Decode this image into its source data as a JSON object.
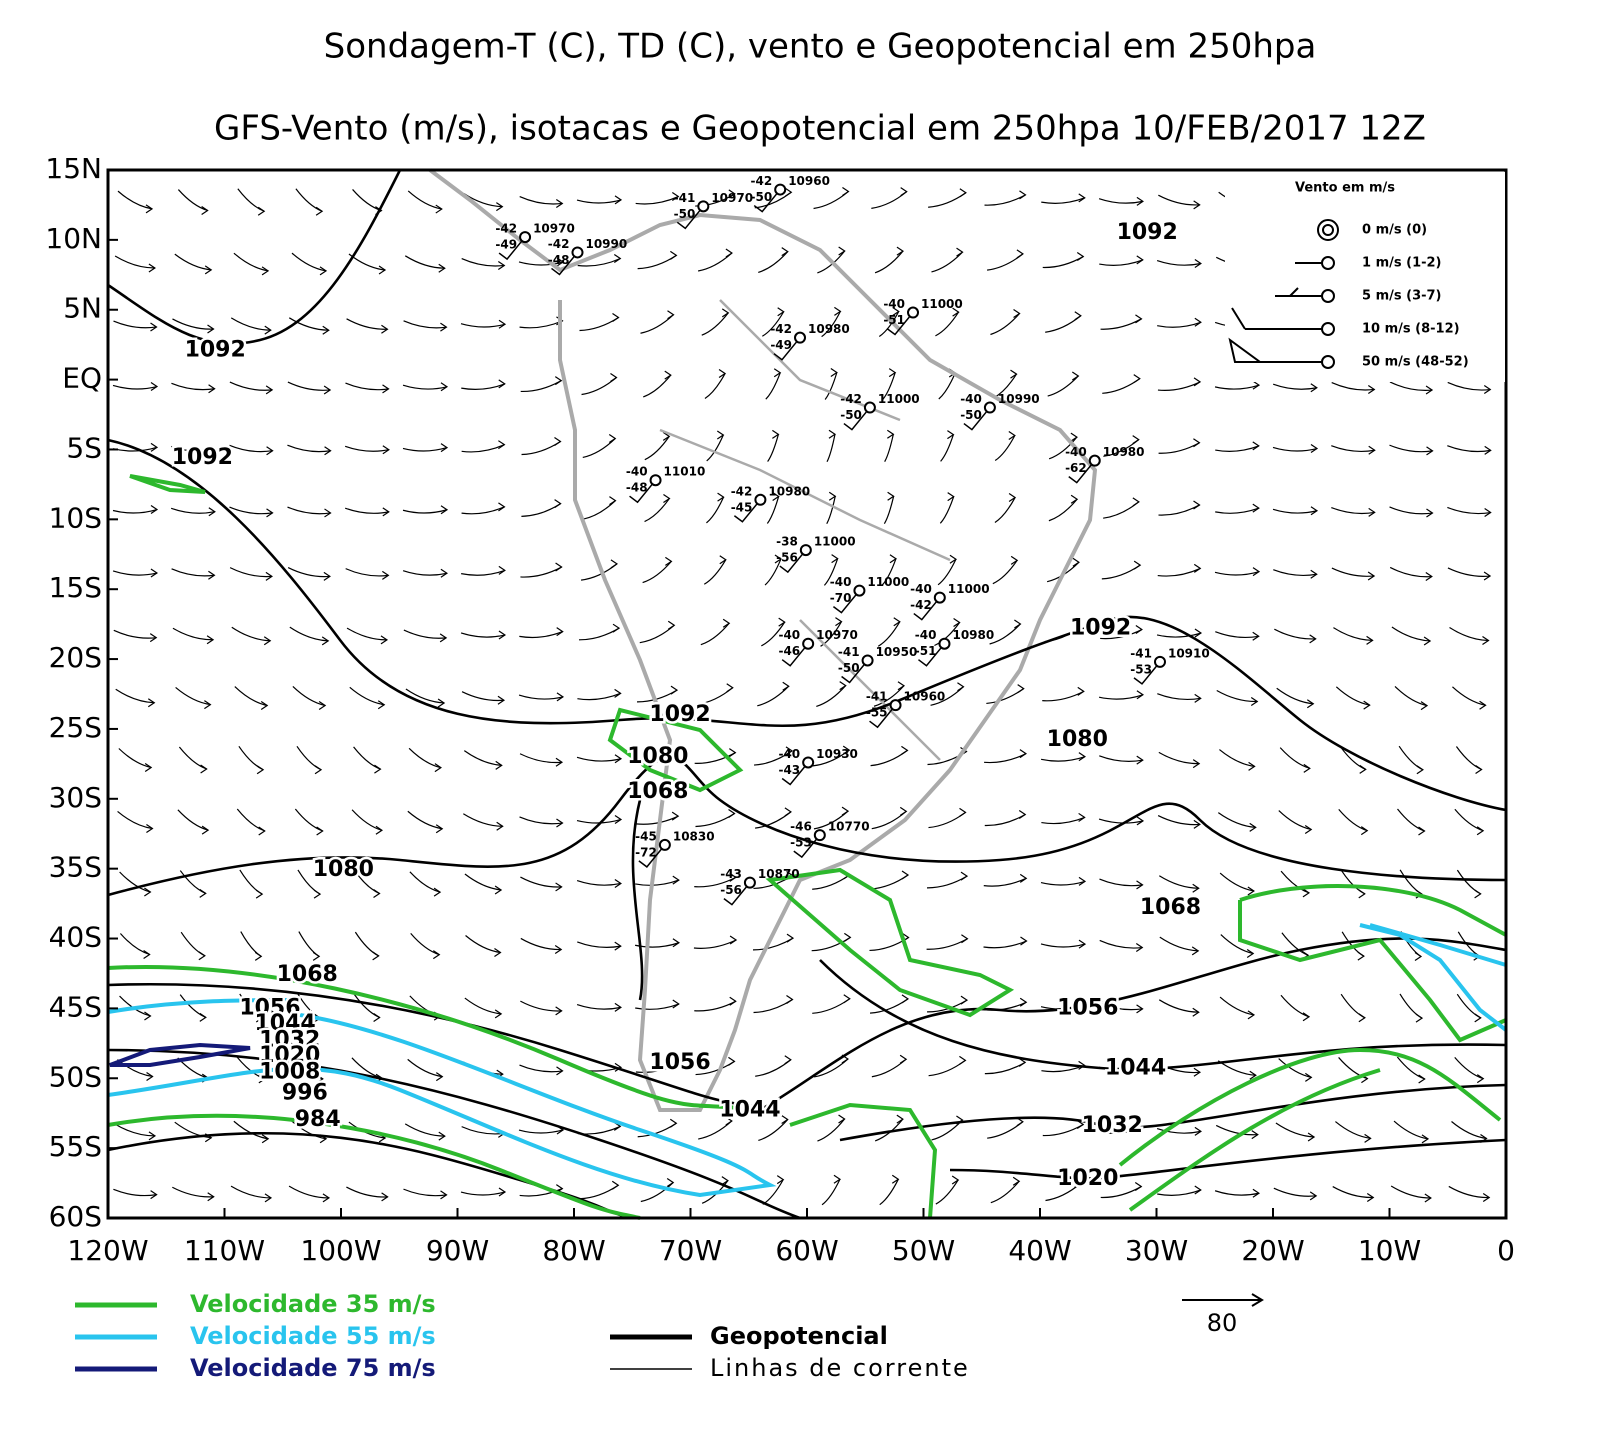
{
  "title": "Sondagem-T (C), TD (C), vento e Geopotencial em 250hpa",
  "subtitle": "GFS-Vento (m/s), isotacas e Geopotencial em 250hpa 10/FEB/2017 12Z",
  "map": {
    "xlim": [
      -120,
      0
    ],
    "ylim": [
      -60,
      15
    ],
    "xticks": [
      {
        "value": -120,
        "label": "120W"
      },
      {
        "value": -110,
        "label": "110W"
      },
      {
        "value": -100,
        "label": "100W"
      },
      {
        "value": -90,
        "label": "90W"
      },
      {
        "value": -80,
        "label": "80W"
      },
      {
        "value": -70,
        "label": "70W"
      },
      {
        "value": -60,
        "label": "60W"
      },
      {
        "value": -50,
        "label": "50W"
      },
      {
        "value": -40,
        "label": "40W"
      },
      {
        "value": -30,
        "label": "30W"
      },
      {
        "value": -20,
        "label": "20W"
      },
      {
        "value": -10,
        "label": "10W"
      },
      0
    ],
    "yticks": [
      {
        "value": 15,
        "label": "15N"
      },
      {
        "value": 10,
        "label": "10N"
      },
      {
        "value": 5,
        "label": "5N"
      },
      {
        "value": 0,
        "label": "EQ"
      },
      {
        "value": -5,
        "label": "5S"
      },
      {
        "value": -10,
        "label": "10S"
      },
      {
        "value": -15,
        "label": "15S"
      },
      {
        "value": -20,
        "label": "20S"
      },
      {
        "value": -25,
        "label": "25S"
      },
      {
        "value": -30,
        "label": "30S"
      },
      {
        "value": -35,
        "label": "35S"
      },
      {
        "value": -40,
        "label": "40S"
      },
      {
        "value": -45,
        "label": "45S"
      },
      {
        "value": -50,
        "label": "50S"
      },
      {
        "value": -55,
        "label": "55S"
      },
      {
        "value": -60,
        "label": "60S"
      }
    ]
  },
  "contour_labels": [
    {
      "value": 1092,
      "lon": -110.8,
      "lat": 2.1
    },
    {
      "value": 1092,
      "lon": -30.8,
      "lat": 10.5
    },
    {
      "value": 1092,
      "lon": -111.9,
      "lat": -5.6
    },
    {
      "value": 1092,
      "lon": -34.8,
      "lat": -17.8
    },
    {
      "value": 1092,
      "lon": -70.9,
      "lat": -24.0
    },
    {
      "value": 1080,
      "lon": -72.8,
      "lat": -27.0
    },
    {
      "value": 1068,
      "lon": -72.8,
      "lat": -29.5
    },
    {
      "value": 1080,
      "lon": -36.8,
      "lat": -25.8
    },
    {
      "value": 1080,
      "lon": -99.8,
      "lat": -35.1
    },
    {
      "value": 1068,
      "lon": -28.8,
      "lat": -37.8
    },
    {
      "value": 1068,
      "lon": -102.9,
      "lat": -42.6
    },
    {
      "value": 1056,
      "lon": -35.9,
      "lat": -45.0
    },
    {
      "value": 1056,
      "lon": -106.1,
      "lat": -45.0
    },
    {
      "value": 1044,
      "lon": -104.8,
      "lat": -46.1
    },
    {
      "value": 1032,
      "lon": -104.4,
      "lat": -47.3
    },
    {
      "value": 1020,
      "lon": -104.4,
      "lat": -48.4
    },
    {
      "value": 1008,
      "lon": -104.4,
      "lat": -49.6
    },
    {
      "value": 996,
      "lon": -103.1,
      "lat": -51.1
    },
    {
      "value": 984,
      "lon": -102.0,
      "lat": -53.0
    },
    {
      "value": 1056,
      "lon": -70.9,
      "lat": -48.9
    },
    {
      "value": 1044,
      "lon": -64.9,
      "lat": -52.3
    },
    {
      "value": 1044,
      "lon": -31.8,
      "lat": -49.3
    },
    {
      "value": 1032,
      "lon": -33.8,
      "lat": -53.4
    },
    {
      "value": 1020,
      "lon": -35.9,
      "lat": -57.2
    }
  ],
  "stations": [
    {
      "lon": -68.9,
      "lat": 12.4,
      "temp": -41,
      "dewpoint": -50,
      "height": 10970
    },
    {
      "lon": -62.3,
      "lat": 13.6,
      "temp": -42,
      "dewpoint": -50,
      "height": 10960
    },
    {
      "lon": -84.2,
      "lat": 10.2,
      "temp": -42,
      "dewpoint": -49,
      "height": 10970
    },
    {
      "lon": -79.7,
      "lat": 9.1,
      "temp": -42,
      "dewpoint": -48,
      "height": 10990
    },
    {
      "lon": -50.9,
      "lat": 4.8,
      "temp": -40,
      "dewpoint": -51,
      "height": 11000
    },
    {
      "lon": -60.6,
      "lat": 3.0,
      "temp": -42,
      "dewpoint": -49,
      "height": 10980
    },
    {
      "lon": -54.6,
      "lat": -2.0,
      "temp": -42,
      "dewpoint": -50,
      "height": 11000
    },
    {
      "lon": -44.3,
      "lat": -2.0,
      "temp": -40,
      "dewpoint": -50,
      "height": 10990
    },
    {
      "lon": -35.3,
      "lat": -5.8,
      "temp": -40,
      "dewpoint": -62,
      "height": 10980
    },
    {
      "lon": -73.0,
      "lat": -7.2,
      "temp": -40,
      "dewpoint": -48,
      "height": 11010
    },
    {
      "lon": -64.0,
      "lat": -8.6,
      "temp": -42,
      "dewpoint": -45,
      "height": 10980
    },
    {
      "lon": -60.1,
      "lat": -12.2,
      "temp": -38,
      "dewpoint": -56,
      "height": 11000
    },
    {
      "lon": -55.5,
      "lat": -15.1,
      "temp": -40,
      "dewpoint": -70,
      "height": 11000
    },
    {
      "lon": -48.6,
      "lat": -15.6,
      "temp": -40,
      "dewpoint": -42,
      "height": 11000
    },
    {
      "lon": -59.9,
      "lat": -18.9,
      "temp": -40,
      "dewpoint": -46,
      "height": 10970
    },
    {
      "lon": -48.2,
      "lat": -18.9,
      "temp": -40,
      "dewpoint": -51,
      "height": 10980
    },
    {
      "lon": -54.8,
      "lat": -20.1,
      "temp": -41,
      "dewpoint": -50,
      "height": 10950
    },
    {
      "lon": -29.7,
      "lat": -20.2,
      "temp": -41,
      "dewpoint": -53,
      "height": 10910
    },
    {
      "lon": -52.4,
      "lat": -23.3,
      "temp": -41,
      "dewpoint": -55,
      "height": 10960
    },
    {
      "lon": -59.9,
      "lat": -27.4,
      "temp": -40,
      "dewpoint": -43,
      "height": 10930
    },
    {
      "lon": -58.9,
      "lat": -32.6,
      "temp": -46,
      "dewpoint": -53,
      "height": 10770
    },
    {
      "lon": -72.2,
      "lat": -33.3,
      "temp": -45,
      "dewpoint": -72,
      "height": 10830
    },
    {
      "lon": -64.9,
      "lat": -36.0,
      "temp": -43,
      "dewpoint": -56,
      "height": 10870
    }
  ],
  "wind_legend": {
    "title": "Vento em m/s",
    "items": [
      "0 m/s (0)",
      "1 m/s (1-2)",
      "5 m/s (3-7)",
      "10 m/s (8-12)",
      "50 m/s (48-52)"
    ]
  },
  "legend": [
    {
      "label": "Velocidade 35 m/s",
      "color": "#2db82d"
    },
    {
      "label": "Velocidade 55 m/s",
      "color": "#29c4ee"
    },
    {
      "label": "Velocidade 75 m/s",
      "color": "#141a78"
    },
    {
      "label": "Geopotencial",
      "color": "#000000"
    },
    {
      "label": "Linhas de corrente",
      "color": "#000000"
    }
  ],
  "vector_scale": 80
}
